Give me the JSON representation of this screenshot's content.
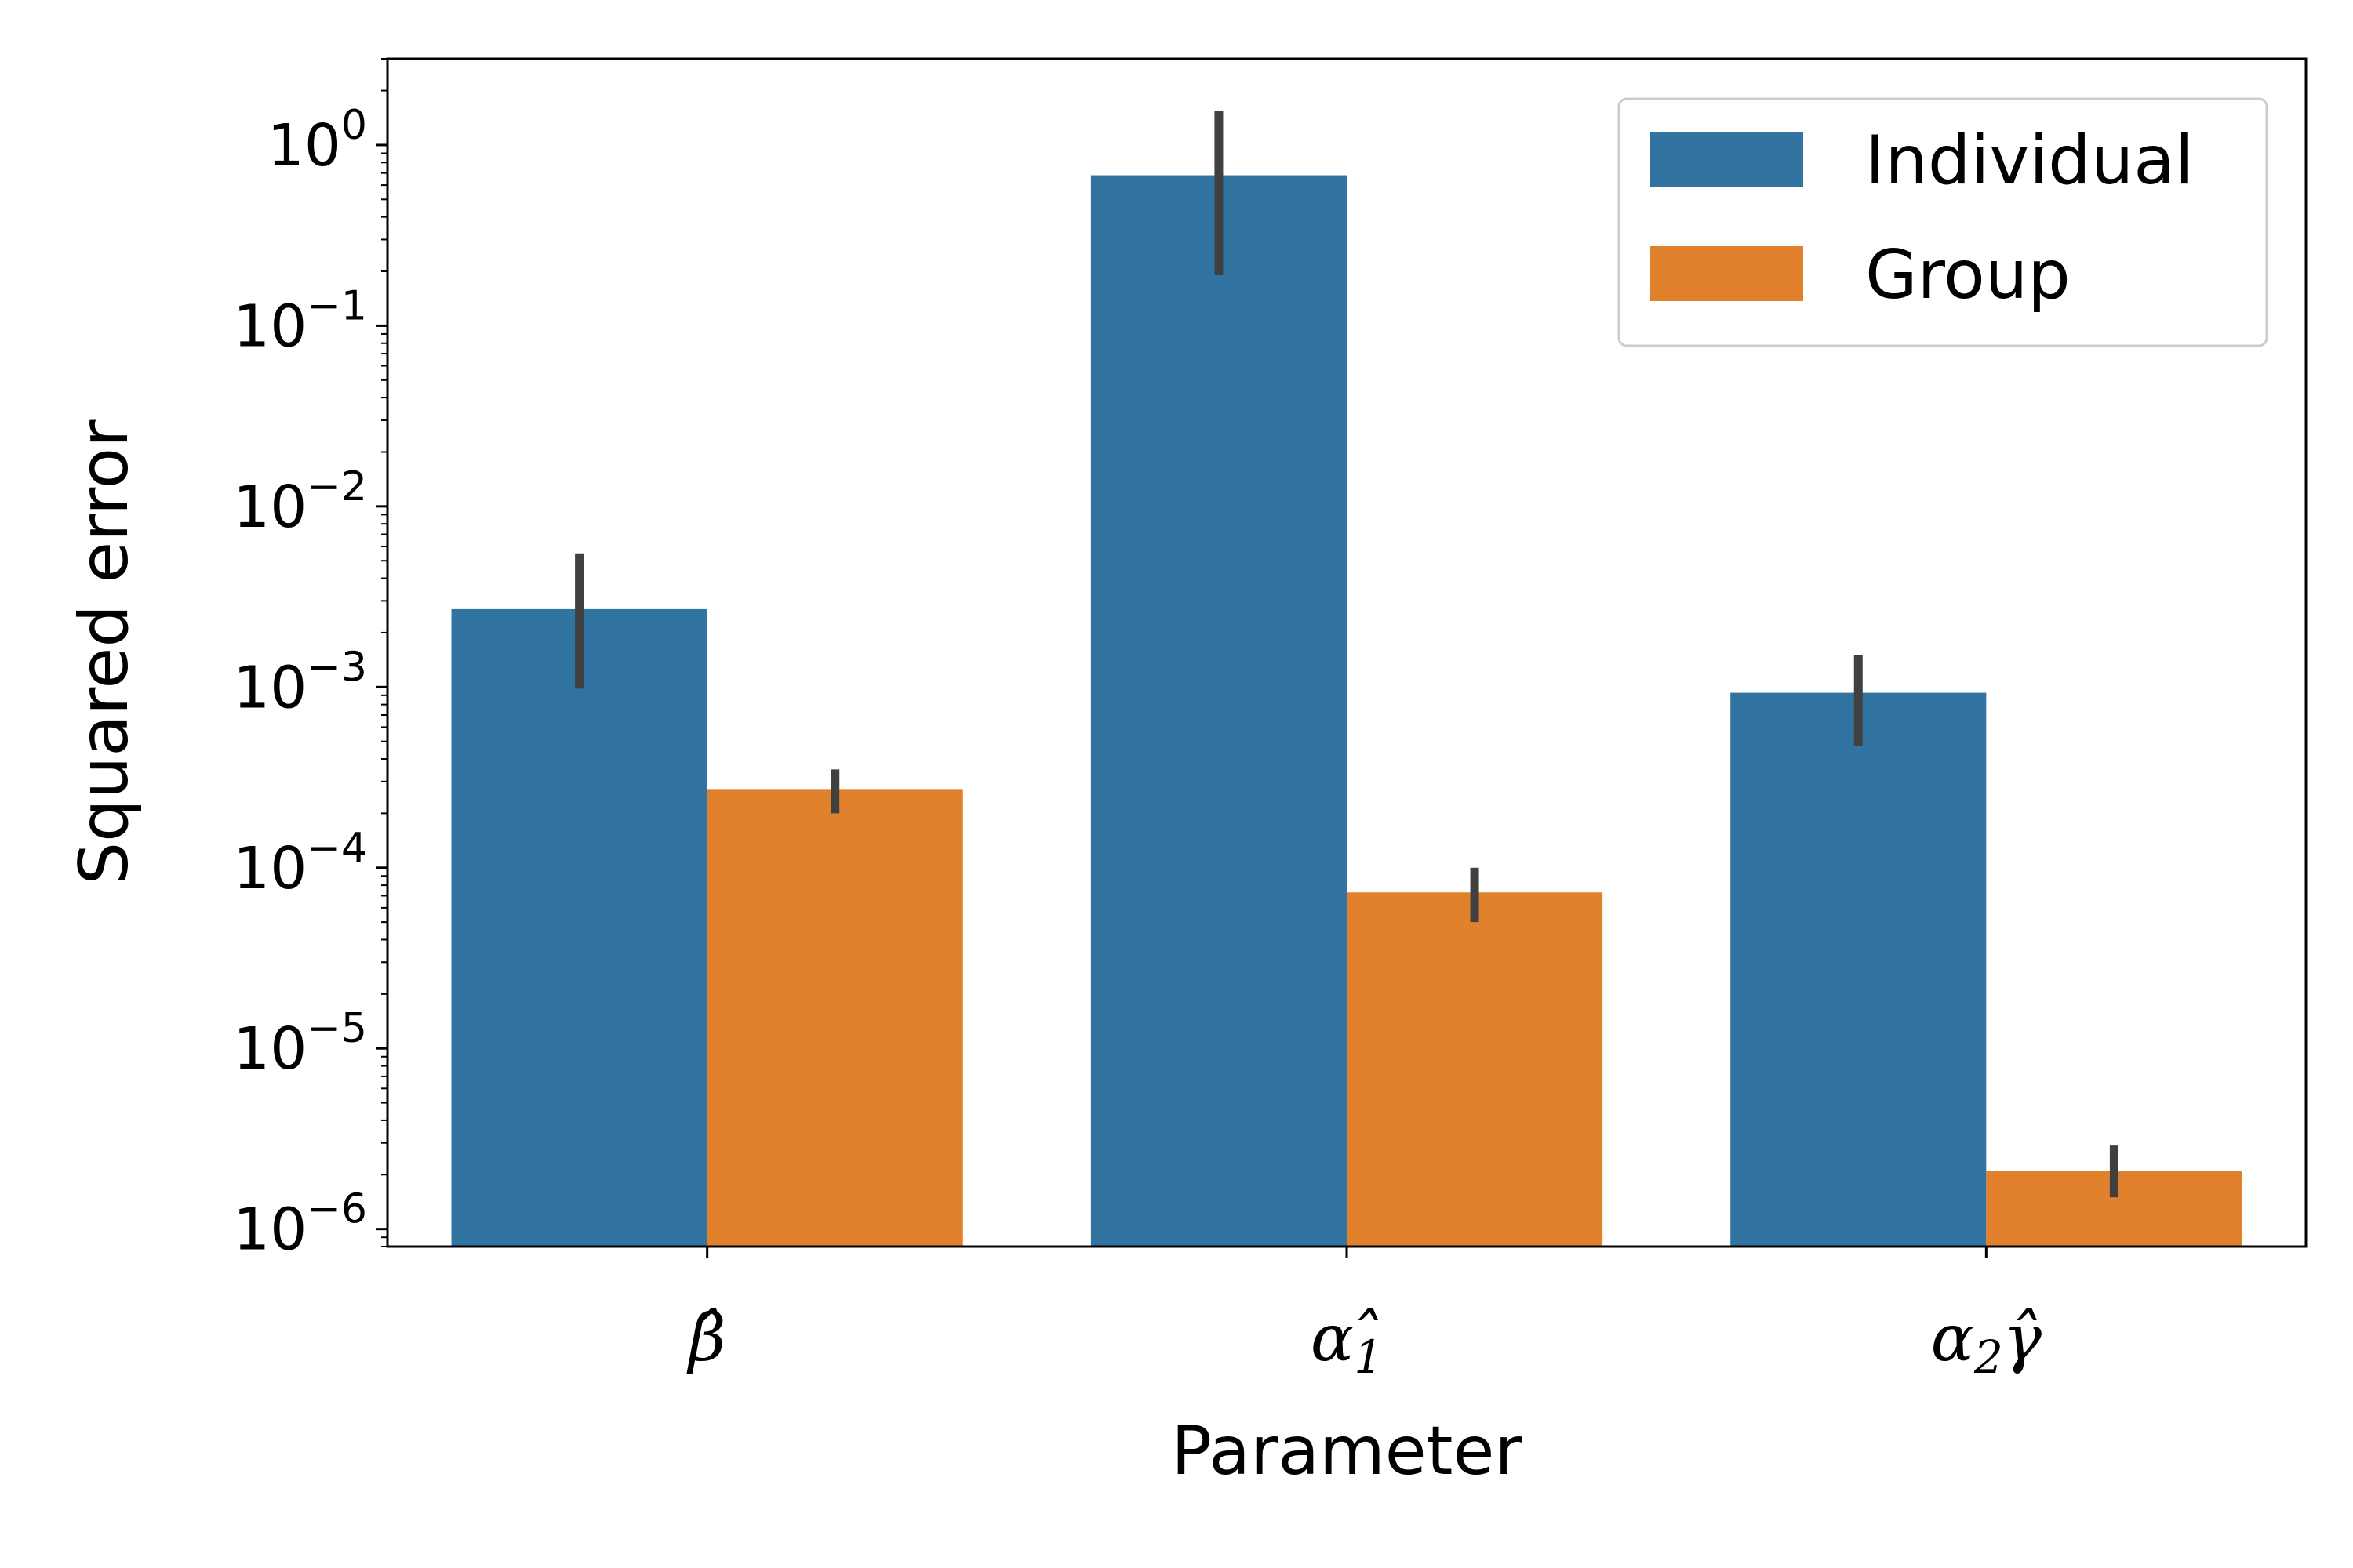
{
  "chart_data": {
    "type": "bar",
    "xlabel": "Parameter",
    "ylabel": "Squared error",
    "yscale": "log",
    "ylim": [
      8e-07,
      3
    ],
    "ytick_values": [
      1e-06,
      1e-05,
      0.0001,
      0.001,
      0.01,
      0.1,
      1
    ],
    "ytick_labels": [
      {
        "base": "10",
        "exp": "−6"
      },
      {
        "base": "10",
        "exp": "−5"
      },
      {
        "base": "10",
        "exp": "−4"
      },
      {
        "base": "10",
        "exp": "−3"
      },
      {
        "base": "10",
        "exp": "−2"
      },
      {
        "base": "10",
        "exp": "−1"
      },
      {
        "base": "10",
        "exp": "0"
      }
    ],
    "categories": [
      {
        "main": "β̂",
        "sub": "",
        "tail": ""
      },
      {
        "main": "α",
        "sub": "1",
        "tail": "̂"
      },
      {
        "main": "α",
        "sub": "2",
        "tail": "γ̂"
      }
    ],
    "legend_position": "top-right",
    "grid": false,
    "series": [
      {
        "name": "Individual",
        "color": "#3274a1",
        "values": [
          0.0027,
          0.68,
          0.00093
        ],
        "ci_low": [
          0.00098,
          0.19,
          0.00047
        ],
        "ci_high": [
          0.0055,
          1.55,
          0.0015
        ]
      },
      {
        "name": "Group",
        "color": "#e1812c",
        "values": [
          0.00027,
          7.3e-05,
          2.1e-06
        ],
        "ci_low": [
          0.0002,
          5e-05,
          1.5e-06
        ],
        "ci_high": [
          0.00035,
          0.0001,
          2.9e-06
        ]
      }
    ],
    "errorbar_color": "#404040"
  }
}
